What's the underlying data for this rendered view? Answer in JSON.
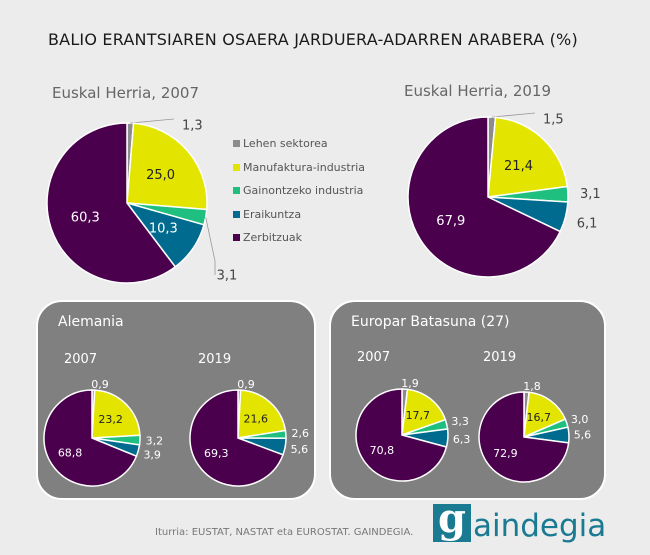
{
  "title": "BALIO ERANTSIAREN OSAERA JARDUERA-ADARREN ARABERA (%)",
  "legend": [
    "Lehen sektorea",
    "Manufaktura-industria",
    "Gainontzeko industria",
    "Eraikuntza",
    "Zerbitzuak"
  ],
  "colors": [
    "#8c8c8c",
    "#e3e500",
    "#1fbf7f",
    "#006b8e",
    "#4a004d"
  ],
  "panels": {
    "alemania": "Alemania",
    "eb": "Europar Batasuna (27)"
  },
  "years": {
    "y2007": "2007",
    "y2019": "2019"
  },
  "source": "Iturria: EUSTAT, NASTAT eta EUROSTAT. GAINDEGIA.",
  "logo": {
    "g": "g",
    "rest": "aindegia"
  },
  "chart_data": [
    {
      "type": "pie",
      "title": "Euskal Herria, 2007",
      "values": [
        1.3,
        25.0,
        3.1,
        10.3,
        60.3
      ],
      "labels": [
        "1,3",
        "25,0",
        "3,1",
        "10,3",
        "60,3"
      ]
    },
    {
      "type": "pie",
      "title": "Euskal Herria, 2019",
      "values": [
        1.5,
        21.4,
        3.1,
        6.1,
        67.9
      ],
      "labels": [
        "1,5",
        "21,4",
        "3,1",
        "6,1",
        "67,9"
      ]
    },
    {
      "type": "pie",
      "group": "Alemania",
      "title": "2007",
      "values": [
        0.9,
        23.2,
        3.2,
        3.9,
        68.8
      ],
      "labels": [
        "0,9",
        "23,2",
        "3,2",
        "3,9",
        "68,8"
      ]
    },
    {
      "type": "pie",
      "group": "Alemania",
      "title": "2019",
      "values": [
        0.9,
        21.6,
        2.6,
        5.6,
        69.3
      ],
      "labels": [
        "0,9",
        "21,6",
        "2,6",
        "5,6",
        "69,3"
      ]
    },
    {
      "type": "pie",
      "group": "Europar Batasuna (27)",
      "title": "2007",
      "values": [
        1.9,
        17.7,
        3.3,
        6.3,
        70.8
      ],
      "labels": [
        "1,9",
        "17,7",
        "3,3",
        "6,3",
        "70,8"
      ]
    },
    {
      "type": "pie",
      "group": "Europar Batasuna (27)",
      "title": "2019",
      "values": [
        1.8,
        16.7,
        3.0,
        5.6,
        72.9
      ],
      "labels": [
        "1,8",
        "16,7",
        "3,0",
        "5,6",
        "72,9"
      ]
    }
  ]
}
